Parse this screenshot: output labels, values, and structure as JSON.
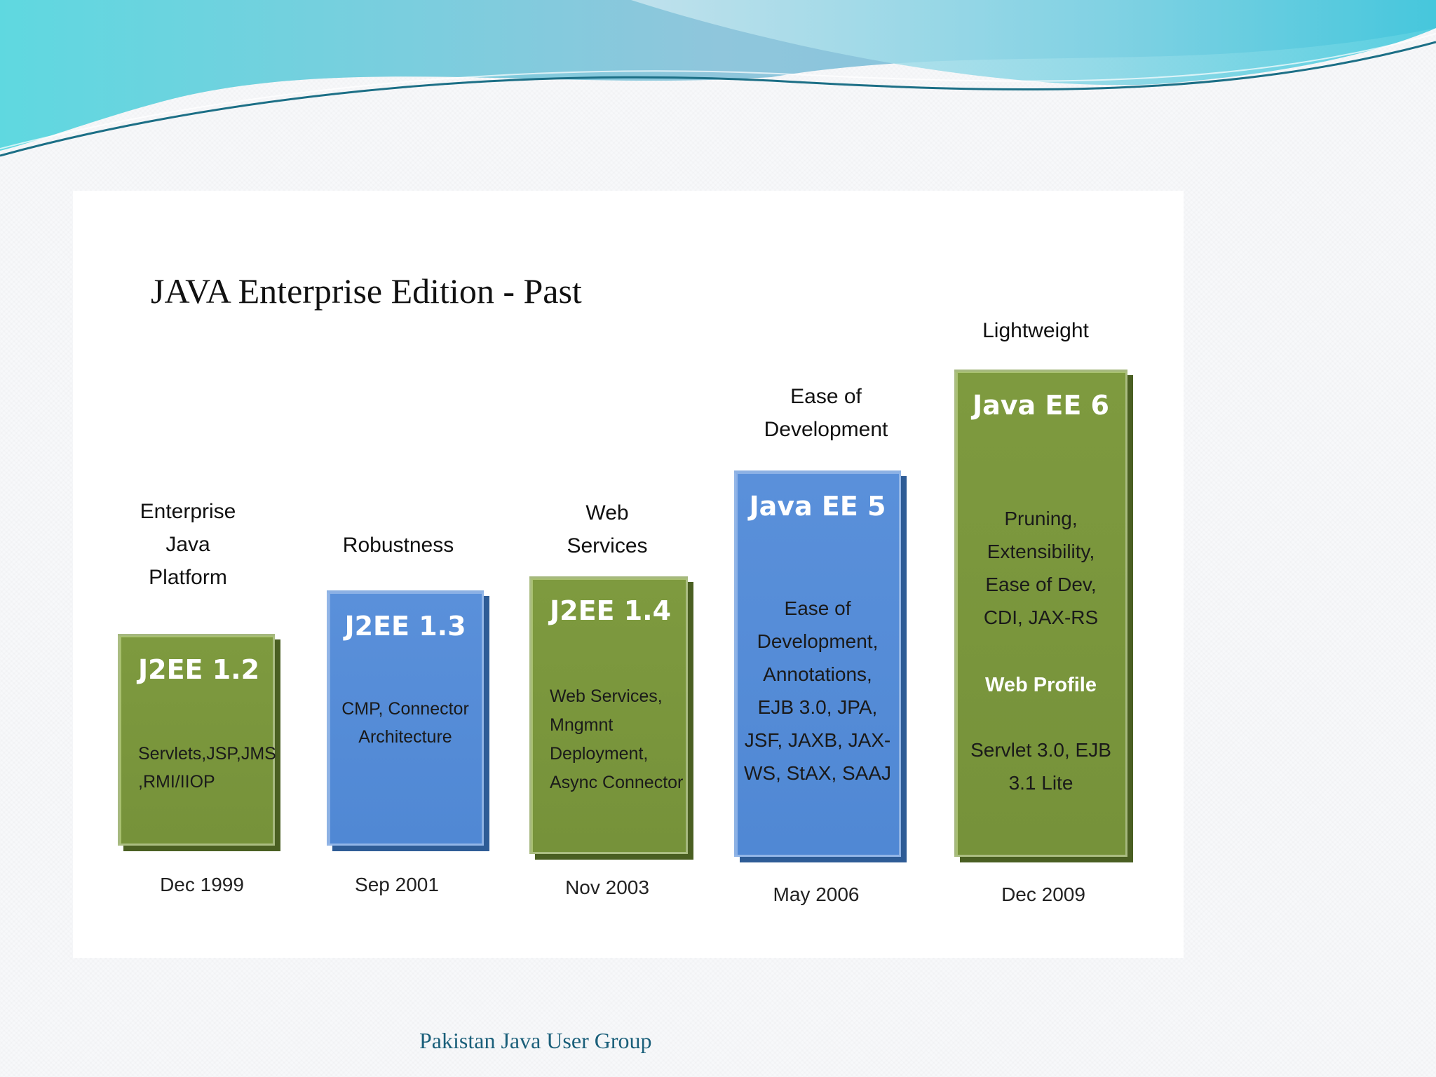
{
  "slide": {
    "title": "JAVA Enterprise Edition - Past",
    "footer": "Pakistan Java User Group"
  },
  "releases": [
    {
      "caption": "Enterprise\nJava\nPlatform",
      "version": "J2EE 1.2",
      "features": "Servlets,JSP,JMS\n,RMI/IIOP",
      "date": "Dec 1999",
      "color": "#77933C"
    },
    {
      "caption": "Robustness",
      "version": "J2EE 1.3",
      "features": "CMP, Connector\nArchitecture",
      "date": "Sep 2001",
      "color": "#558ED5"
    },
    {
      "caption": "Web\nServices",
      "version": "J2EE 1.4",
      "features": "Web Services,\nMngmnt\nDeployment,\nAsync Connector",
      "date": "Nov 2003",
      "color": "#77933C"
    },
    {
      "caption": "Ease of\nDevelopment",
      "version": "Java EE 5",
      "features": "Ease of\nDevelopment,\nAnnotations,\nEJB 3.0, JPA,\nJSF, JAXB, JAX-\nWS, StAX, SAAJ",
      "date": "May 2006",
      "color": "#558ED5"
    },
    {
      "caption": "Lightweight",
      "version": "Java EE 6",
      "features_top": "Pruning,\nExtensibility,\nEase of Dev,\nCDI, JAX-RS",
      "features_highlight": "Web Profile",
      "features_bottom": "Servlet 3.0, EJB\n3.1 Lite",
      "date": "Dec 2009",
      "color": "#77933C"
    }
  ]
}
